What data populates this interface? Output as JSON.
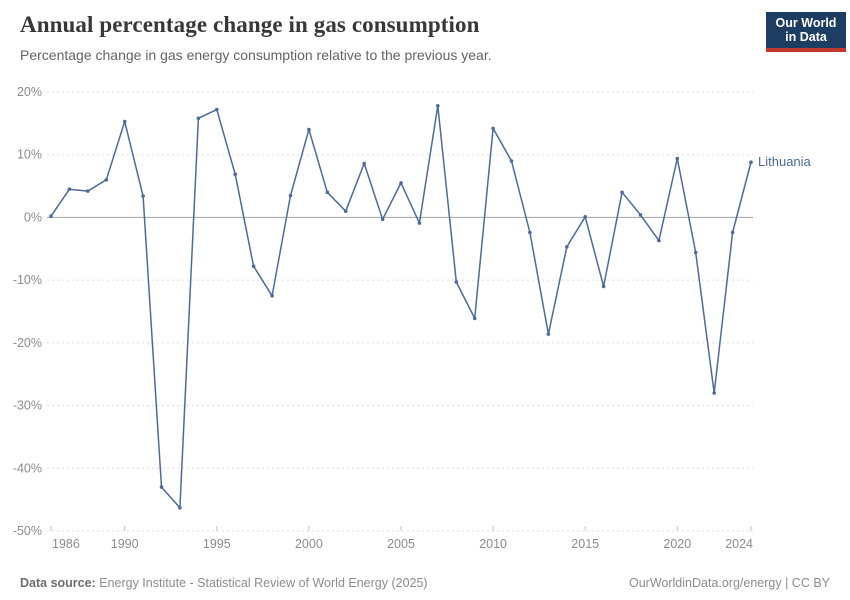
{
  "header": {
    "title": "Annual percentage change in gas consumption",
    "subtitle": "Percentage change in gas energy consumption relative to the previous year.",
    "logo": {
      "line1": "Our World",
      "line2": "in Data",
      "bg_color": "#1d3d63",
      "stripe_color": "#c1372f"
    }
  },
  "chart_data": {
    "type": "line",
    "title": "Annual percentage change in gas consumption",
    "series": [
      {
        "name": "Lithuania",
        "color": "#4C6A9C",
        "x": [
          1986,
          1987,
          1988,
          1989,
          1990,
          1991,
          1992,
          1993,
          1994,
          1995,
          1996,
          1997,
          1998,
          1999,
          2000,
          2001,
          2002,
          2003,
          2004,
          2005,
          2006,
          2007,
          2008,
          2009,
          2010,
          2011,
          2012,
          2013,
          2014,
          2015,
          2016,
          2017,
          2018,
          2019,
          2020,
          2021,
          2022,
          2023,
          2024
        ],
        "values": [
          0.2,
          4.5,
          4.2,
          6.0,
          15.3,
          3.4,
          -43.0,
          -46.3,
          15.8,
          17.2,
          6.9,
          -7.8,
          -12.5,
          3.5,
          14.0,
          4.0,
          1.0,
          8.6,
          -0.3,
          5.5,
          -0.9,
          17.8,
          -10.3,
          -16.1,
          14.2,
          9.0,
          -2.4,
          -18.6,
          -4.7,
          0.1,
          -11.0,
          4.0,
          0.4,
          -3.7,
          9.4,
          -5.6,
          -28.0,
          -2.4,
          8.8
        ]
      }
    ],
    "xlabel": "",
    "ylabel": "",
    "xlim": [
      1986,
      2024
    ],
    "ylim": [
      -50,
      20
    ],
    "x_ticks": [
      1986,
      1990,
      1995,
      2000,
      2005,
      2010,
      2015,
      2020,
      2024
    ],
    "y_ticks": [
      20,
      10,
      0,
      -10,
      -20,
      -30,
      -40,
      -50
    ],
    "y_tick_suffix": "%",
    "grid": "horizontal-dashed",
    "zero_line": true,
    "legend_position": "line-end-label"
  },
  "footer": {
    "source_label": "Data source:",
    "source_text": " Energy Institute - Statistical Review of World Energy (2025)",
    "rights": "OurWorldinData.org/energy | CC BY"
  },
  "colors": {
    "line": "#4C6A9C",
    "grid": "#dddddd",
    "zero_line": "#a3a3a3",
    "tick_text": "#8c8c8c",
    "tick_mark": "#c2c2c2"
  }
}
